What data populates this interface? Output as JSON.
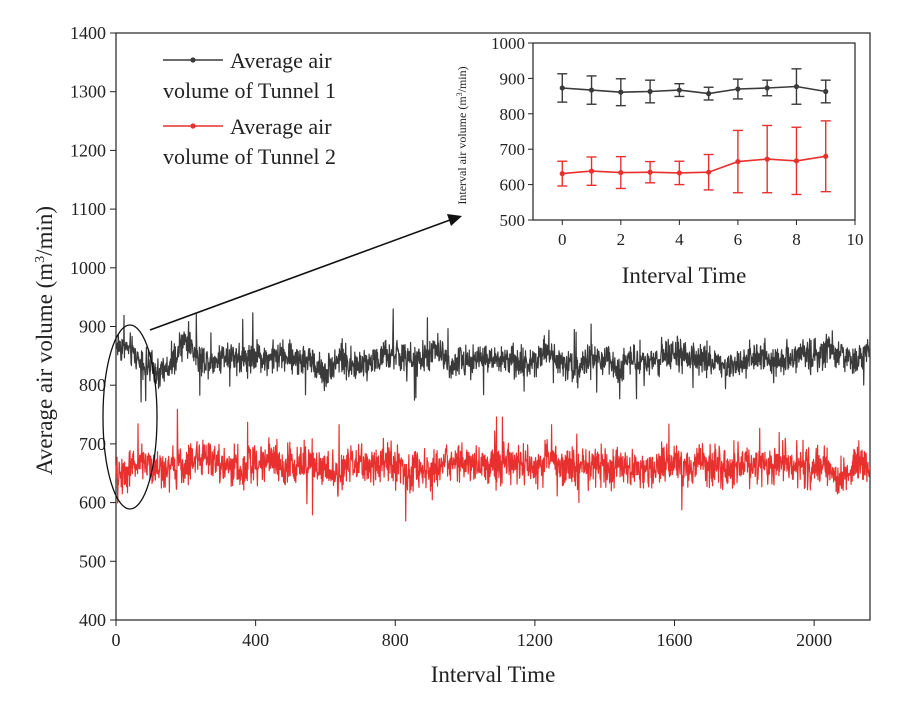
{
  "chart_data": [
    {
      "id": "main",
      "type": "line",
      "title": "",
      "xlabel": "Interval Time",
      "ylabel_main": "Average air volume",
      "ylabel_unit_prefix": "(m",
      "ylabel_unit_sup": "3",
      "ylabel_unit_suffix": "/min)",
      "xlim": [
        0,
        2160
      ],
      "ylim": [
        400,
        1400
      ],
      "xticks": [
        0,
        400,
        800,
        1200,
        1600,
        2000
      ],
      "yticks": [
        400,
        500,
        600,
        700,
        800,
        900,
        1000,
        1100,
        1200,
        1300,
        1400
      ],
      "grid": false,
      "legend_placement": "top-left",
      "series": [
        {
          "name_line1": "Average air",
          "name_line2": "volume of Tunnel 1",
          "color": "#3a3a3a",
          "x": [
            0,
            40,
            80,
            120,
            160,
            200,
            240,
            280,
            320,
            360,
            400,
            440,
            480,
            520,
            560,
            600,
            640,
            680,
            720,
            760,
            800,
            840,
            880,
            920,
            960,
            1000,
            1040,
            1080,
            1120,
            1160,
            1200,
            1240,
            1280,
            1320,
            1360,
            1400,
            1440,
            1480,
            1520,
            1560,
            1600,
            1640,
            1680,
            1720,
            1760,
            1800,
            1840,
            1880,
            1920,
            1960,
            2000,
            2040,
            2080,
            2120,
            2160
          ],
          "values": [
            870,
            860,
            835,
            820,
            830,
            880,
            845,
            840,
            855,
            845,
            850,
            845,
            850,
            845,
            840,
            820,
            850,
            830,
            840,
            845,
            855,
            840,
            845,
            860,
            835,
            840,
            850,
            840,
            845,
            835,
            845,
            860,
            840,
            830,
            845,
            840,
            830,
            850,
            840,
            845,
            855,
            840,
            845,
            840,
            830,
            845,
            850,
            840,
            845,
            855,
            850,
            860,
            850,
            840,
            860
          ],
          "mean": 845,
          "fluctuation": 24
        },
        {
          "name_line1": "Average air",
          "name_line2": "volume of Tunnel 2",
          "color": "#e8312f",
          "x": [
            0,
            40,
            80,
            120,
            160,
            200,
            240,
            280,
            320,
            360,
            400,
            440,
            480,
            520,
            560,
            600,
            640,
            680,
            720,
            760,
            800,
            840,
            880,
            920,
            960,
            1000,
            1040,
            1080,
            1120,
            1160,
            1200,
            1240,
            1280,
            1320,
            1360,
            1400,
            1440,
            1480,
            1520,
            1560,
            1600,
            1640,
            1680,
            1720,
            1760,
            1800,
            1840,
            1880,
            1920,
            1960,
            2000,
            2040,
            2080,
            2120,
            2160
          ],
          "values": [
            640,
            660,
            670,
            655,
            660,
            665,
            680,
            670,
            665,
            660,
            670,
            675,
            660,
            665,
            670,
            655,
            650,
            665,
            660,
            670,
            665,
            650,
            655,
            660,
            665,
            670,
            660,
            655,
            670,
            665,
            660,
            675,
            665,
            660,
            670,
            655,
            665,
            660,
            650,
            670,
            665,
            660,
            670,
            665,
            655,
            670,
            660,
            665,
            670,
            665,
            660,
            665,
            640,
            670,
            655
          ],
          "mean": 663,
          "fluctuation": 30
        }
      ]
    },
    {
      "id": "inset",
      "type": "line",
      "title": "",
      "xlabel": "Interval Time",
      "ylabel": "Interval air volume",
      "ylabel_unit_prefix": "(m",
      "ylabel_unit_sup": "3",
      "ylabel_unit_suffix": "/min)",
      "xlim": [
        -1,
        10
      ],
      "ylim": [
        500,
        1000
      ],
      "xticks": [
        0,
        2,
        4,
        6,
        8,
        10
      ],
      "yticks": [
        500,
        600,
        700,
        800,
        900,
        1000
      ],
      "grid": false,
      "series": [
        {
          "name": "Average air volume of Tunnel 1",
          "color": "#3a3a3a",
          "x": [
            0,
            1,
            2,
            3,
            4,
            5,
            6,
            7,
            8,
            9
          ],
          "values": [
            873,
            867,
            861,
            863,
            867,
            857,
            870,
            873,
            877,
            863
          ],
          "err": [
            40,
            40,
            38,
            32,
            18,
            18,
            28,
            22,
            50,
            32
          ]
        },
        {
          "name": "Average air volume of Tunnel 2",
          "color": "#e8312f",
          "x": [
            0,
            1,
            2,
            3,
            4,
            5,
            6,
            7,
            8,
            9
          ],
          "values": [
            631,
            638,
            634,
            635,
            633,
            635,
            665,
            672,
            667,
            680
          ],
          "err": [
            35,
            40,
            45,
            30,
            33,
            50,
            88,
            95,
            95,
            100
          ]
        }
      ]
    }
  ]
}
